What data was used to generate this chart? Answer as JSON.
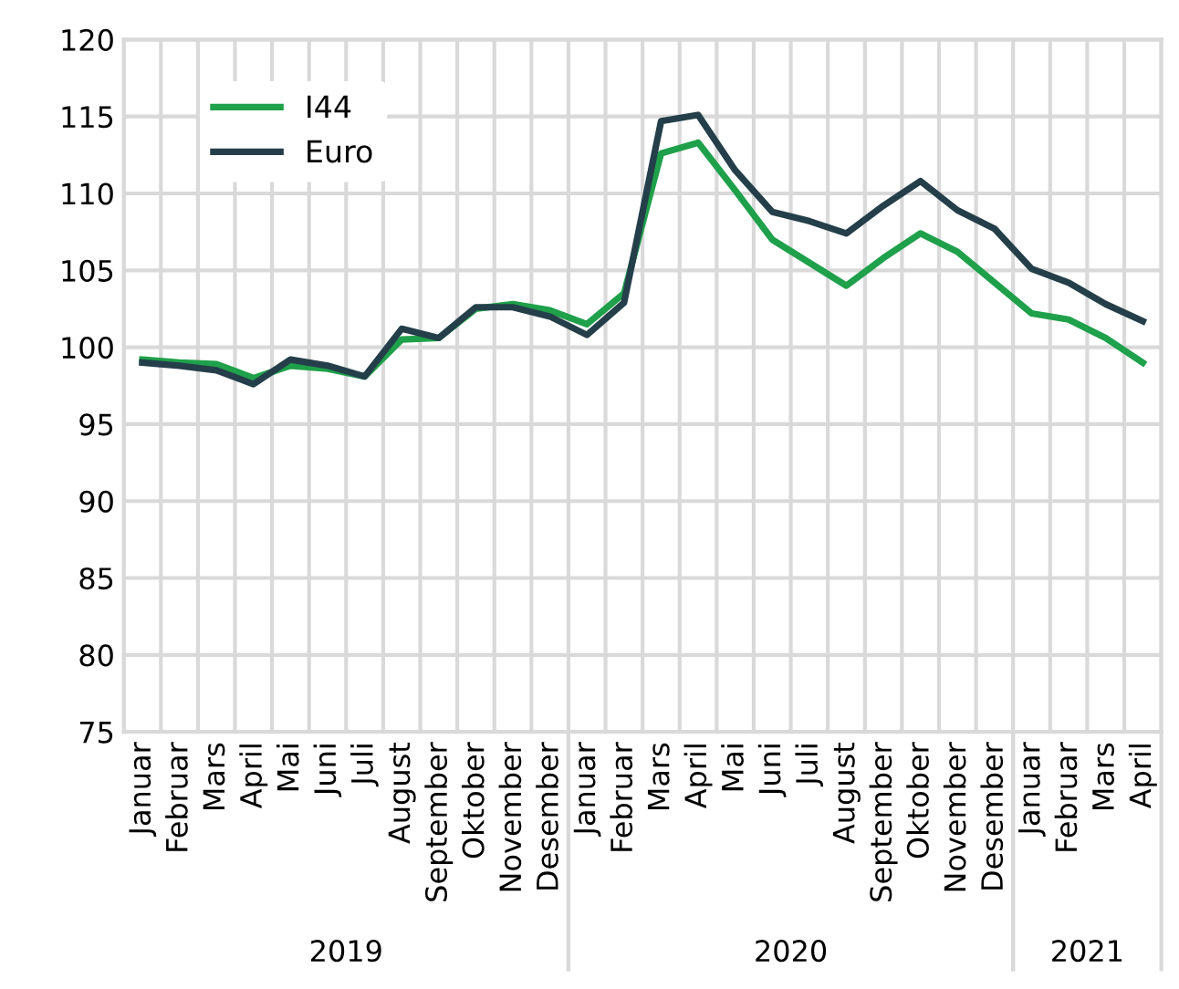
{
  "chart_data": {
    "type": "line",
    "categories": [
      "Januar",
      "Februar",
      "Mars",
      "April",
      "Mai",
      "Juni",
      "Juli",
      "August",
      "September",
      "Oktober",
      "November",
      "Desember",
      "Januar",
      "Februar",
      "Mars",
      "April",
      "Mai",
      "Juni",
      "Juli",
      "August",
      "September",
      "Oktober",
      "November",
      "Desember",
      "Januar",
      "Februar",
      "Mars",
      "April"
    ],
    "series": [
      {
        "name": "I44",
        "color": "#1fa04a",
        "values": [
          99.2,
          99.0,
          98.9,
          98.0,
          98.8,
          98.6,
          98.1,
          100.5,
          100.6,
          102.5,
          102.8,
          102.4,
          101.5,
          103.5,
          112.6,
          113.3,
          110.2,
          107.0,
          105.5,
          104.0,
          105.8,
          107.4,
          106.2,
          104.2,
          102.2,
          101.8,
          100.6,
          99.0
        ]
      },
      {
        "name": "Euro",
        "color": "#243f4a",
        "values": [
          99.0,
          98.8,
          98.5,
          97.6,
          99.2,
          98.8,
          98.1,
          101.2,
          100.6,
          102.6,
          102.6,
          102.0,
          100.8,
          102.9,
          114.7,
          115.1,
          111.5,
          108.8,
          108.2,
          107.4,
          109.2,
          110.8,
          108.9,
          107.7,
          105.1,
          104.2,
          102.8,
          101.7
        ]
      }
    ],
    "ylim": [
      75,
      120
    ],
    "yticks": [
      75,
      80,
      85,
      90,
      95,
      100,
      105,
      110,
      115,
      120
    ],
    "annotations": [
      "2019",
      "2020",
      "2021"
    ],
    "grid": true,
    "legend": "top left",
    "marker": "none",
    "line_style": "solid"
  }
}
